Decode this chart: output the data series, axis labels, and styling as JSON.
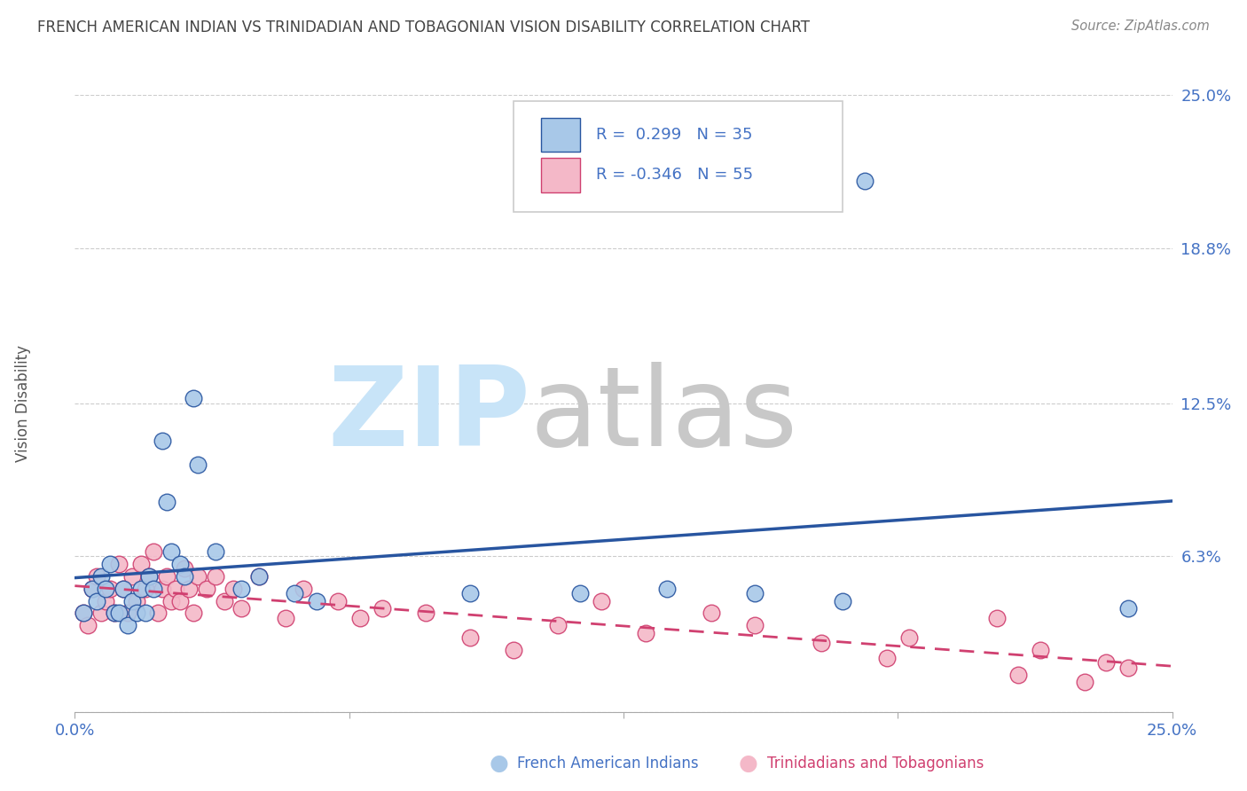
{
  "title": "FRENCH AMERICAN INDIAN VS TRINIDADIAN AND TOBAGONIAN VISION DISABILITY CORRELATION CHART",
  "source": "Source: ZipAtlas.com",
  "ylabel": "Vision Disability",
  "legend_label_blue": "French American Indians",
  "legend_label_pink": "Trinidadians and Tobagonians",
  "legend_r_blue": "R =  0.299",
  "legend_n_blue": "N = 35",
  "legend_r_pink": "R = -0.346",
  "legend_n_pink": "N = 55",
  "xmin": 0.0,
  "xmax": 0.25,
  "ymin": 0.0,
  "ymax": 0.25,
  "yticks": [
    0.0,
    0.063,
    0.125,
    0.188,
    0.25
  ],
  "ytick_labels": [
    "",
    "6.3%",
    "12.5%",
    "18.8%",
    "25.0%"
  ],
  "xticks": [
    0.0,
    0.0625,
    0.125,
    0.1875,
    0.25
  ],
  "xtick_labels": [
    "0.0%",
    "",
    "",
    "",
    "25.0%"
  ],
  "color_blue": "#a8c8e8",
  "color_pink": "#f4b8c8",
  "line_color_blue": "#2855a0",
  "line_color_pink": "#d04070",
  "background_color": "#ffffff",
  "watermark_zip_color": "#c8e4f8",
  "watermark_atlas_color": "#c8c8c8",
  "grid_color": "#cccccc",
  "title_color": "#444444",
  "axis_label_color": "#4472c4",
  "blue_scatter_x": [
    0.002,
    0.004,
    0.005,
    0.006,
    0.007,
    0.008,
    0.009,
    0.01,
    0.011,
    0.012,
    0.013,
    0.014,
    0.015,
    0.016,
    0.017,
    0.018,
    0.02,
    0.021,
    0.022,
    0.024,
    0.025,
    0.027,
    0.028,
    0.032,
    0.038,
    0.042,
    0.05,
    0.055,
    0.09,
    0.115,
    0.135,
    0.155,
    0.175,
    0.24,
    0.18
  ],
  "blue_scatter_y": [
    0.04,
    0.05,
    0.045,
    0.055,
    0.05,
    0.06,
    0.04,
    0.04,
    0.05,
    0.035,
    0.045,
    0.04,
    0.05,
    0.04,
    0.055,
    0.05,
    0.11,
    0.085,
    0.065,
    0.06,
    0.055,
    0.127,
    0.1,
    0.065,
    0.05,
    0.055,
    0.048,
    0.045,
    0.048,
    0.048,
    0.05,
    0.048,
    0.045,
    0.042,
    0.215
  ],
  "pink_scatter_x": [
    0.002,
    0.003,
    0.004,
    0.005,
    0.006,
    0.007,
    0.008,
    0.009,
    0.01,
    0.011,
    0.012,
    0.013,
    0.014,
    0.015,
    0.016,
    0.017,
    0.018,
    0.019,
    0.02,
    0.021,
    0.022,
    0.023,
    0.024,
    0.025,
    0.026,
    0.027,
    0.028,
    0.03,
    0.032,
    0.034,
    0.036,
    0.038,
    0.042,
    0.048,
    0.052,
    0.06,
    0.065,
    0.07,
    0.08,
    0.09,
    0.1,
    0.11,
    0.12,
    0.13,
    0.145,
    0.155,
    0.17,
    0.185,
    0.19,
    0.21,
    0.215,
    0.22,
    0.23,
    0.235,
    0.24
  ],
  "pink_scatter_y": [
    0.04,
    0.035,
    0.05,
    0.055,
    0.04,
    0.045,
    0.05,
    0.04,
    0.06,
    0.05,
    0.04,
    0.055,
    0.045,
    0.06,
    0.05,
    0.055,
    0.065,
    0.04,
    0.05,
    0.055,
    0.045,
    0.05,
    0.045,
    0.058,
    0.05,
    0.04,
    0.055,
    0.05,
    0.055,
    0.045,
    0.05,
    0.042,
    0.055,
    0.038,
    0.05,
    0.045,
    0.038,
    0.042,
    0.04,
    0.03,
    0.025,
    0.035,
    0.045,
    0.032,
    0.04,
    0.035,
    0.028,
    0.022,
    0.03,
    0.038,
    0.015,
    0.025,
    0.012,
    0.02,
    0.018
  ]
}
